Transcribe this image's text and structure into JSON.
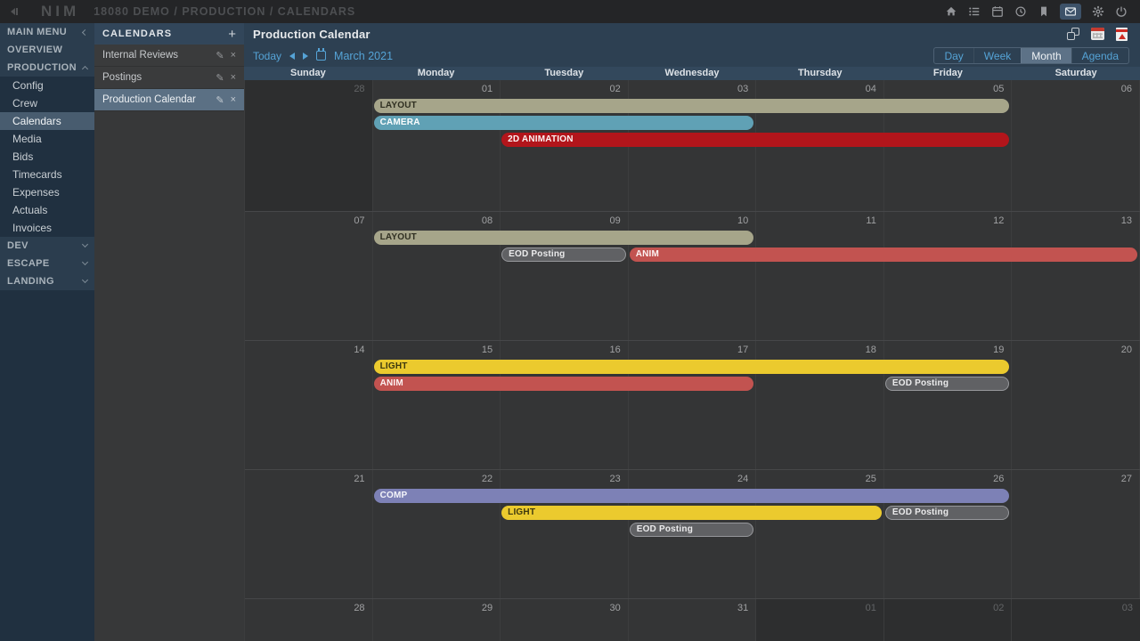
{
  "topbar": {
    "logo": "NIM",
    "breadcrumb": "18080 DEMO / PRODUCTION / CALENDARS",
    "icons": [
      {
        "name": "home-icon"
      },
      {
        "name": "list-icon"
      },
      {
        "name": "calendar-icon"
      },
      {
        "name": "clock-icon"
      },
      {
        "name": "bookmark-icon"
      },
      {
        "name": "mail-icon",
        "active": true
      },
      {
        "name": "gear-icon"
      },
      {
        "name": "power-icon"
      }
    ]
  },
  "sidebar": {
    "items": [
      {
        "label": "MAIN MENU",
        "type": "section",
        "chevron": "left"
      },
      {
        "label": "OVERVIEW",
        "type": "section"
      },
      {
        "label": "PRODUCTION",
        "type": "section",
        "chevron": "up"
      },
      {
        "label": "Config",
        "type": "sub"
      },
      {
        "label": "Crew",
        "type": "sub"
      },
      {
        "label": "Calendars",
        "type": "sub",
        "selected": true
      },
      {
        "label": "Media",
        "type": "sub"
      },
      {
        "label": "Bids",
        "type": "sub"
      },
      {
        "label": "Timecards",
        "type": "sub"
      },
      {
        "label": "Expenses",
        "type": "sub"
      },
      {
        "label": "Actuals",
        "type": "sub"
      },
      {
        "label": "Invoices",
        "type": "sub"
      },
      {
        "label": "DEV",
        "type": "section",
        "chevron": "down"
      },
      {
        "label": "ESCAPE",
        "type": "section",
        "chevron": "down"
      },
      {
        "label": "LANDING",
        "type": "section",
        "chevron": "down"
      }
    ]
  },
  "calendars_panel": {
    "title": "CALENDARS",
    "items": [
      {
        "name": "Internal Reviews"
      },
      {
        "name": "Postings"
      },
      {
        "name": "Production Calendar",
        "selected": true
      }
    ]
  },
  "icons": {
    "add": "+",
    "edit": "✎",
    "delete": "×"
  },
  "main": {
    "title": "Production Calendar",
    "header_icons": [
      {
        "name": "copy-icon"
      },
      {
        "name": "export-calendar-icon"
      },
      {
        "name": "export-pdf-icon"
      }
    ],
    "toolbar": {
      "today": "Today",
      "month_label": "March 2021"
    },
    "views": [
      {
        "label": "Day"
      },
      {
        "label": "Week"
      },
      {
        "label": "Month",
        "active": true
      },
      {
        "label": "Agenda"
      }
    ],
    "day_headers": [
      "Sunday",
      "Monday",
      "Tuesday",
      "Wednesday",
      "Thursday",
      "Friday",
      "Saturday"
    ]
  },
  "calendar": {
    "month": "March 2021",
    "event_colors": {
      "layout": {
        "bg": "#a6a58a",
        "fg": "#2f2f21"
      },
      "camera": {
        "bg": "#60a1b5",
        "fg": "#fdfefe"
      },
      "anim2d": {
        "bg": "#b2151b",
        "fg": "#fdf3f3"
      },
      "anim": {
        "bg": "#c25350",
        "fg": "#fdf3f3"
      },
      "light": {
        "bg": "#ebca2e",
        "fg": "#3e390f"
      },
      "comp": {
        "bg": "#7d81b6",
        "fg": "#f4f5fa"
      },
      "eod": {
        "bg": "#606164",
        "fg": "#ebebec",
        "border": "#96979b"
      }
    },
    "weeks": [
      {
        "days": [
          {
            "n": "28",
            "out": true
          },
          {
            "n": "01"
          },
          {
            "n": "02"
          },
          {
            "n": "03"
          },
          {
            "n": "04"
          },
          {
            "n": "05"
          },
          {
            "n": "06"
          }
        ],
        "events": [
          {
            "label": "LAYOUT",
            "type": "layout",
            "start": 1,
            "end": 5,
            "row": 0
          },
          {
            "label": "CAMERA",
            "type": "camera",
            "start": 1,
            "end": 3,
            "row": 1
          },
          {
            "label": "2D ANIMATION",
            "type": "anim2d",
            "start": 2,
            "end": 5,
            "row": 2
          }
        ]
      },
      {
        "days": [
          {
            "n": "07"
          },
          {
            "n": "08"
          },
          {
            "n": "09"
          },
          {
            "n": "10"
          },
          {
            "n": "11"
          },
          {
            "n": "12"
          },
          {
            "n": "13"
          }
        ],
        "events": [
          {
            "label": "LAYOUT",
            "type": "layout",
            "start": 1,
            "end": 3,
            "row": 0
          },
          {
            "label": "EOD Posting",
            "type": "eod",
            "start": 2,
            "end": 2,
            "row": 1
          },
          {
            "label": "ANIM",
            "type": "anim",
            "start": 3,
            "end": 6,
            "row": 1
          }
        ]
      },
      {
        "days": [
          {
            "n": "14"
          },
          {
            "n": "15"
          },
          {
            "n": "16"
          },
          {
            "n": "17"
          },
          {
            "n": "18"
          },
          {
            "n": "19"
          },
          {
            "n": "20"
          }
        ],
        "events": [
          {
            "label": "LIGHT",
            "type": "light",
            "start": 1,
            "end": 5,
            "row": 0
          },
          {
            "label": "ANIM",
            "type": "anim",
            "start": 1,
            "end": 3,
            "row": 1
          },
          {
            "label": "EOD Posting",
            "type": "eod",
            "start": 5,
            "end": 5,
            "row": 1
          }
        ]
      },
      {
        "days": [
          {
            "n": "21"
          },
          {
            "n": "22"
          },
          {
            "n": "23"
          },
          {
            "n": "24"
          },
          {
            "n": "25"
          },
          {
            "n": "26"
          },
          {
            "n": "27"
          }
        ],
        "events": [
          {
            "label": "COMP",
            "type": "comp",
            "start": 1,
            "end": 5,
            "row": 0
          },
          {
            "label": "LIGHT",
            "type": "light",
            "start": 2,
            "end": 4,
            "row": 1
          },
          {
            "label": "EOD Posting",
            "type": "eod",
            "start": 5,
            "end": 5,
            "row": 1
          },
          {
            "label": "EOD Posting",
            "type": "eod",
            "start": 3,
            "end": 3,
            "row": 2
          }
        ]
      },
      {
        "days": [
          {
            "n": "28"
          },
          {
            "n": "29"
          },
          {
            "n": "30"
          },
          {
            "n": "31"
          },
          {
            "n": "01",
            "out": true
          },
          {
            "n": "02",
            "out": true
          },
          {
            "n": "03",
            "out": true
          }
        ],
        "events": []
      }
    ]
  }
}
